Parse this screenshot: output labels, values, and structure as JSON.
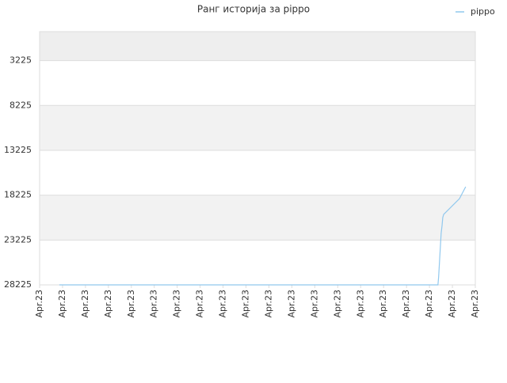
{
  "chart_data": {
    "type": "line",
    "title": "Ранг историја за pippo",
    "x": [
      0.86,
      17.37,
      17.4,
      17.44,
      17.48,
      17.51,
      17.55,
      17.58,
      17.62,
      18.31,
      18.58
    ],
    "series": [
      {
        "name": "pippo",
        "color": "#90c8ee",
        "values": [
          28225,
          28225,
          27343,
          25579,
          23813,
          22490,
          21610,
          20728,
          20375,
          18611,
          17288
        ]
      }
    ],
    "xlim": [
      0,
      19
    ],
    "xticks": [
      {
        "value": 0,
        "label": "Apr.23"
      },
      {
        "value": 1,
        "label": "Apr.23"
      },
      {
        "value": 2,
        "label": "Apr.23"
      },
      {
        "value": 3,
        "label": "Apr.23"
      },
      {
        "value": 4,
        "label": "Apr.23"
      },
      {
        "value": 5,
        "label": "Apr.23"
      },
      {
        "value": 6,
        "label": "Apr.23"
      },
      {
        "value": 7,
        "label": "Apr.23"
      },
      {
        "value": 8,
        "label": "Apr.23"
      },
      {
        "value": 9,
        "label": "Apr.23"
      },
      {
        "value": 10,
        "label": "Apr.23"
      },
      {
        "value": 11,
        "label": "Apr.23"
      },
      {
        "value": 12,
        "label": "Apr.23"
      },
      {
        "value": 13,
        "label": "Apr.23"
      },
      {
        "value": 14,
        "label": "Apr.23"
      },
      {
        "value": 15,
        "label": "Apr.23"
      },
      {
        "value": 16,
        "label": "Apr.23"
      },
      {
        "value": 17,
        "label": "Apr.23"
      },
      {
        "value": 18,
        "label": "Apr.23"
      },
      {
        "value": 19,
        "label": "Apr.23"
      }
    ],
    "ylim": [
      28225,
      0
    ],
    "yticks": [
      3225,
      8225,
      13225,
      18225,
      23225,
      28225
    ],
    "grid": true,
    "legend": "top-right"
  }
}
